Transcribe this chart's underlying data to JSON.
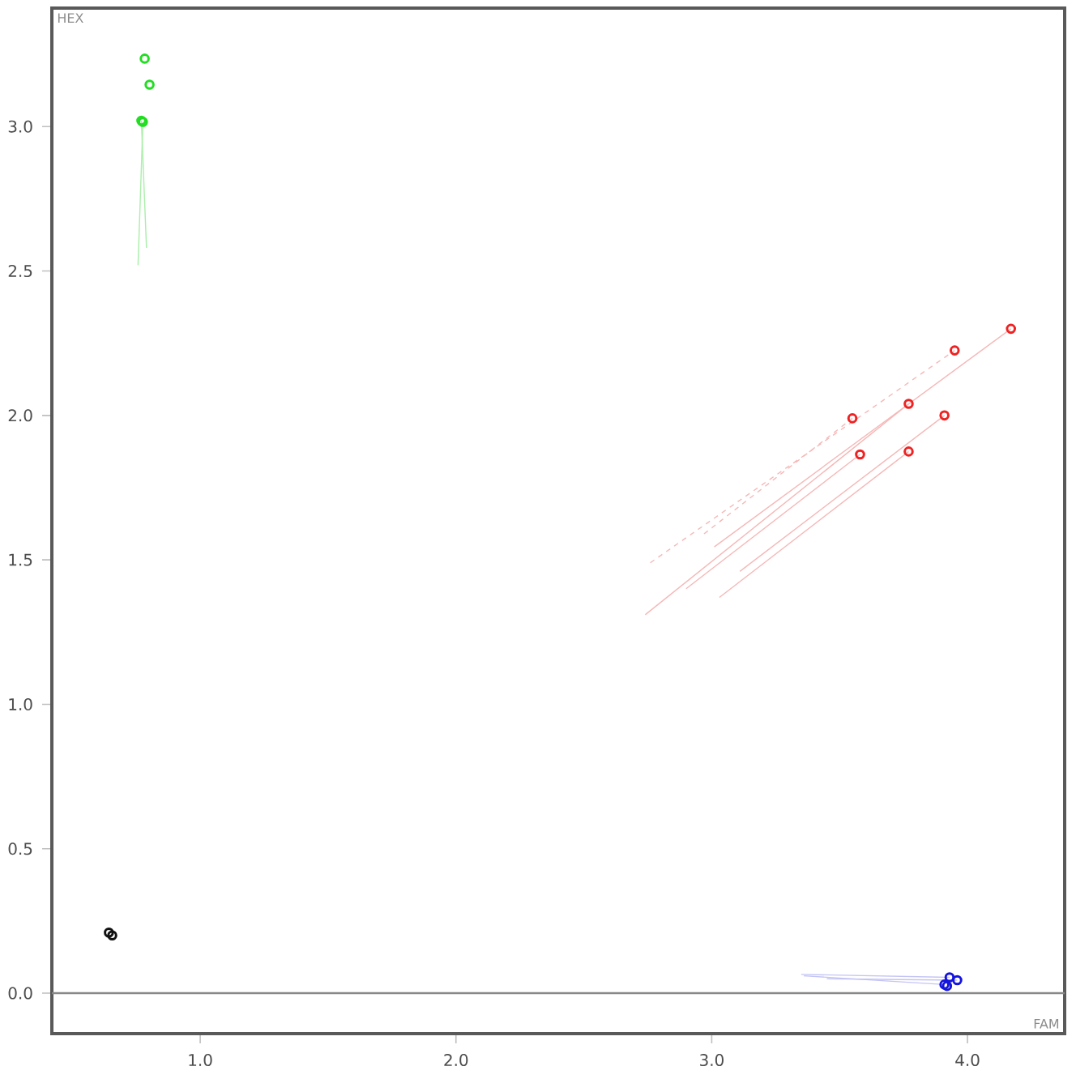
{
  "chart_data": {
    "type": "scatter",
    "xlabel": "FAM",
    "ylabel": "HEX",
    "xlim": [
      0.42,
      4.38
    ],
    "ylim": [
      -0.14,
      3.41
    ],
    "xticks": [
      {
        "value": 1,
        "label": "1.0"
      },
      {
        "value": 2,
        "label": "2.0"
      },
      {
        "value": 3,
        "label": "3.0"
      },
      {
        "value": 4,
        "label": "4.0"
      }
    ],
    "yticks": [
      {
        "value": 0,
        "label": "0.0"
      },
      {
        "value": 0.5,
        "label": "0.5"
      },
      {
        "value": 1,
        "label": "1.0"
      },
      {
        "value": 1.5,
        "label": "1.5"
      },
      {
        "value": 2,
        "label": "2.0"
      },
      {
        "value": 2.5,
        "label": "2.5"
      },
      {
        "value": 3,
        "label": "3.0"
      }
    ],
    "marker": "circle",
    "ref_lines": [
      {
        "axis": "y",
        "value": 0,
        "color": "#888888"
      }
    ],
    "series": [
      {
        "type": "line",
        "marker": "none",
        "color": "#aaeeaa",
        "x": [
          0.757,
          0.776
        ],
        "values": [
          2.52,
          3.016
        ]
      },
      {
        "type": "line",
        "marker": "none",
        "color": "#aaeeaa",
        "x": [
          0.79,
          0.77
        ],
        "values": [
          2.58,
          3.02
        ]
      },
      {
        "type": "line",
        "marker": "none",
        "color": "#f5b8b8",
        "x": [
          3.01,
          4.17
        ],
        "values": [
          1.545,
          2.3
        ]
      },
      {
        "type": "line",
        "marker": "none",
        "line_style": "dashed",
        "color": "#f5b8b8",
        "x": [
          2.76,
          3.95
        ],
        "values": [
          1.49,
          2.225
        ]
      },
      {
        "type": "line",
        "marker": "none",
        "color": "#f5b8b8",
        "x": [
          2.74,
          3.77
        ],
        "values": [
          1.31,
          2.04
        ]
      },
      {
        "type": "line",
        "marker": "none",
        "line_style": "dashed",
        "color": "#f5b8b8",
        "x": [
          2.97,
          3.55
        ],
        "values": [
          1.59,
          1.99
        ]
      },
      {
        "type": "line",
        "marker": "none",
        "color": "#f5b8b8",
        "x": [
          3.11,
          3.91
        ],
        "values": [
          1.46,
          2.0
        ]
      },
      {
        "type": "line",
        "marker": "none",
        "color": "#f5b8b8",
        "x": [
          2.9,
          3.58
        ],
        "values": [
          1.4,
          1.865
        ]
      },
      {
        "type": "line",
        "marker": "none",
        "color": "#f5b8b8",
        "x": [
          3.03,
          3.77
        ],
        "values": [
          1.37,
          1.875
        ]
      },
      {
        "type": "line",
        "marker": "none",
        "color": "#c4c4f5",
        "x": [
          3.35,
          3.93
        ],
        "values": [
          0.065,
          0.055
        ]
      },
      {
        "type": "line",
        "marker": "none",
        "color": "#c4c4f5",
        "x": [
          3.36,
          3.91
        ],
        "values": [
          0.06,
          0.03
        ]
      },
      {
        "type": "line",
        "marker": "none",
        "color": "#c4c4f5",
        "x": [
          3.45,
          3.96
        ],
        "values": [
          0.05,
          0.045
        ]
      },
      {
        "color": "#22dd22",
        "x": [
          0.783,
          0.802,
          0.776,
          0.77
        ],
        "values": [
          3.235,
          3.145,
          3.016,
          3.02
        ]
      },
      {
        "color": "#ee2222",
        "x": [
          4.17,
          3.95,
          3.77,
          3.55,
          3.91,
          3.58,
          3.77
        ],
        "values": [
          2.3,
          2.225,
          2.04,
          1.99,
          2.0,
          1.865,
          1.875
        ]
      },
      {
        "color": "#1515dd",
        "x": [
          3.91,
          3.93,
          3.96,
          3.92
        ],
        "values": [
          0.03,
          0.055,
          0.045,
          0.025
        ]
      },
      {
        "color": "#111111",
        "x": [
          0.643,
          0.656
        ],
        "values": [
          0.21,
          0.2
        ]
      }
    ]
  }
}
